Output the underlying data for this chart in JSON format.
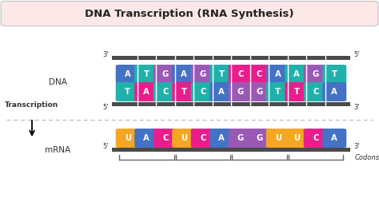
{
  "title": "DNA Transcription (RNA Synthesis)",
  "title_bg": "#fde8e8",
  "title_border": "#cccccc",
  "background": "#ffffff",
  "dna_top_strand": [
    "A",
    "T",
    "G",
    "A",
    "G",
    "T",
    "C",
    "C",
    "A",
    "A",
    "G",
    "T"
  ],
  "dna_top_colors": [
    "#4472C4",
    "#20B2AA",
    "#9B59B6",
    "#4472C4",
    "#9B59B6",
    "#20B2AA",
    "#E91E8C",
    "#E91E8C",
    "#4472C4",
    "#20B2AA",
    "#9B59B6",
    "#20B2AA"
  ],
  "dna_bot_strand": [
    "T",
    "A",
    "C",
    "T",
    "C",
    "A",
    "G",
    "G",
    "T",
    "T",
    "C",
    "A"
  ],
  "dna_bot_colors": [
    "#20B2AA",
    "#E91E8C",
    "#20B2AA",
    "#E91E8C",
    "#20B2AA",
    "#4472C4",
    "#9B59B6",
    "#9B59B6",
    "#20B2AA",
    "#E91E8C",
    "#20B2AA",
    "#4472C4"
  ],
  "mrna_strand": [
    "U",
    "A",
    "C",
    "U",
    "C",
    "A",
    "G",
    "G",
    "U",
    "U",
    "C",
    "A"
  ],
  "mrna_colors": [
    "#F5A623",
    "#4472C4",
    "#E91E8C",
    "#F5A623",
    "#E91E8C",
    "#4472C4",
    "#9B59B6",
    "#9B59B6",
    "#F5A623",
    "#F5A623",
    "#E91E8C",
    "#4472C4"
  ],
  "backbone_color": "#4a4a4a",
  "label_color": "#333333",
  "dna_label": "DNA",
  "mrna_label": "mRNA",
  "transcription_label": "Transcription",
  "codons_label": "Codons",
  "fig_w": 4.74,
  "fig_h": 2.48,
  "dpi": 100
}
